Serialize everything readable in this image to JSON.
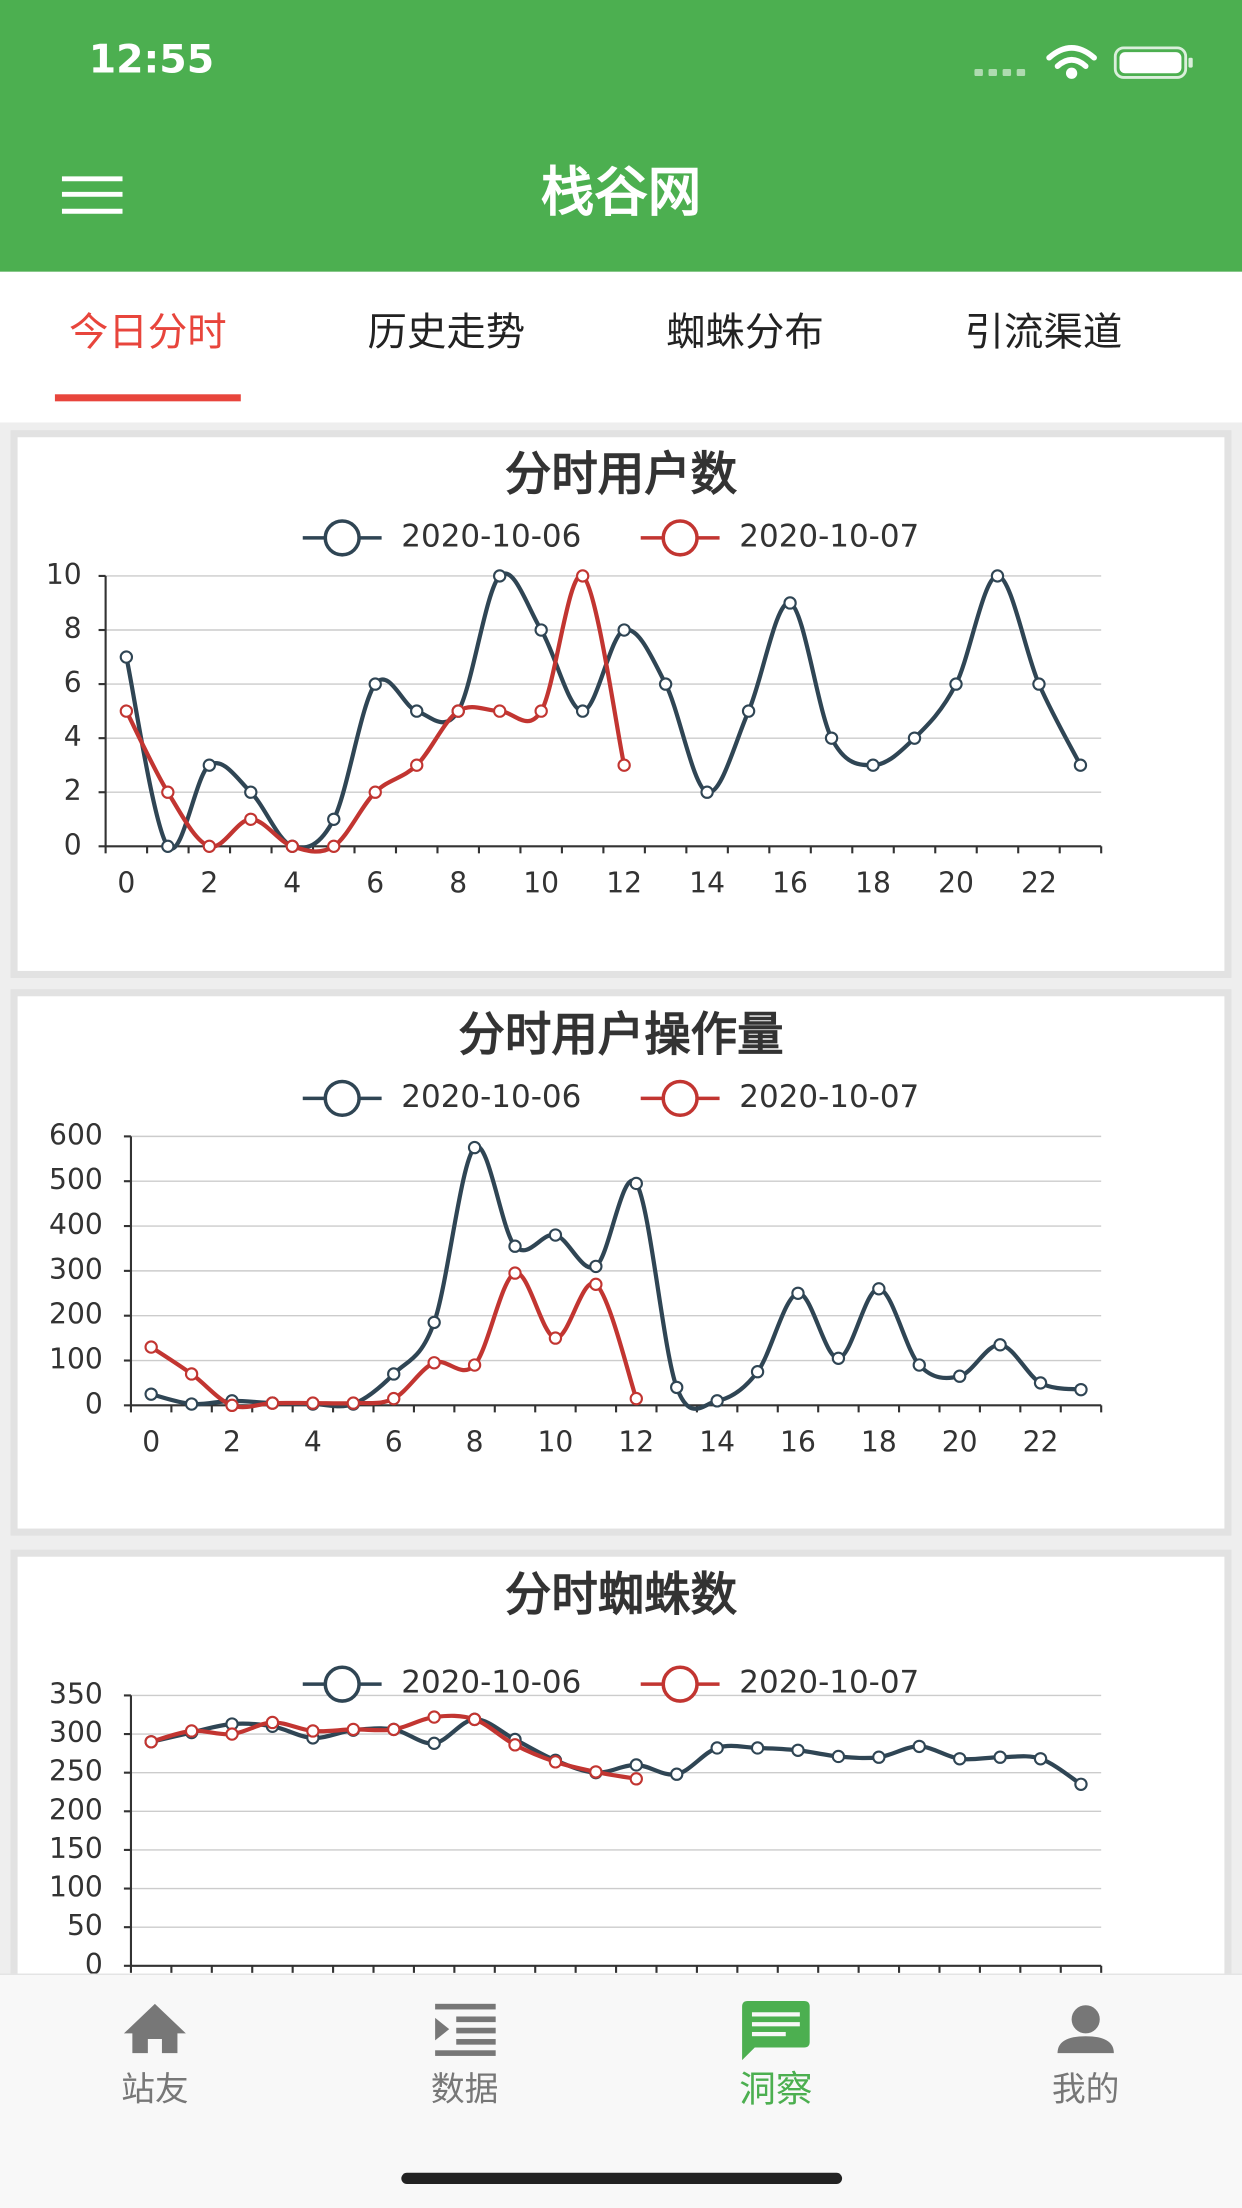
{
  "status_bar": {
    "time": "12:55"
  },
  "header": {
    "title": "栈谷网"
  },
  "tabs": [
    "今日分时",
    "历史走势",
    "蜘蛛分布",
    "引流渠道"
  ],
  "active_tab": 0,
  "chart_data": [
    {
      "type": "line",
      "title": "分时用户数",
      "categories": [
        "0",
        null,
        "2",
        null,
        "4",
        null,
        "6",
        null,
        "8",
        null,
        "10",
        null,
        "12",
        null,
        "14",
        null,
        "16",
        null,
        "18",
        null,
        "20",
        null,
        "22",
        null
      ],
      "series": [
        {
          "name": "2020-10-06",
          "color": "#2f4554",
          "values": [
            7,
            0,
            3,
            2,
            0,
            1,
            6,
            5,
            5,
            10,
            8,
            5,
            8,
            6,
            2,
            5,
            9,
            4,
            3,
            4,
            6,
            10,
            6,
            3
          ]
        },
        {
          "name": "2020-10-07",
          "color": "#c23531",
          "values": [
            5,
            2,
            0,
            1,
            0,
            0,
            2,
            3,
            5,
            5,
            5,
            10,
            3,
            null,
            null,
            null,
            null,
            null,
            null,
            null,
            null,
            null,
            null,
            null
          ]
        }
      ],
      "ylim": [
        0,
        10
      ],
      "yticks": [
        0,
        2,
        4,
        6,
        8,
        10
      ],
      "grid": true,
      "legend": "top",
      "smooth": true
    },
    {
      "type": "line",
      "title": "分时用户操作量",
      "categories": [
        "0",
        null,
        "2",
        null,
        "4",
        null,
        "6",
        null,
        "8",
        null,
        "10",
        null,
        "12",
        null,
        "14",
        null,
        "16",
        null,
        "18",
        null,
        "20",
        null,
        "22",
        null
      ],
      "series": [
        {
          "name": "2020-10-06",
          "color": "#2f4554",
          "values": [
            25,
            3,
            10,
            5,
            3,
            3,
            70,
            185,
            575,
            355,
            380,
            310,
            495,
            40,
            10,
            75,
            250,
            105,
            260,
            90,
            65,
            135,
            50,
            35
          ]
        },
        {
          "name": "2020-10-07",
          "color": "#c23531",
          "values": [
            130,
            70,
            0,
            5,
            5,
            5,
            15,
            95,
            90,
            295,
            150,
            270,
            15,
            null,
            null,
            null,
            null,
            null,
            null,
            null,
            null,
            null,
            null,
            null
          ]
        }
      ],
      "ylim": [
        0,
        600
      ],
      "yticks": [
        0,
        100,
        200,
        300,
        400,
        500,
        600
      ],
      "grid": true,
      "legend": "top",
      "smooth": true
    },
    {
      "type": "line",
      "title": "分时蜘蛛数",
      "series": [
        {
          "name": "2020-10-06",
          "color": "#2f4554",
          "values": [
            290,
            302,
            313,
            310,
            295,
            305,
            306,
            288,
            319,
            293,
            266,
            250,
            260,
            248,
            282,
            282,
            279,
            271,
            270,
            284,
            268,
            270,
            268,
            235
          ]
        },
        {
          "name": "2020-10-07",
          "color": "#c23531",
          "values": [
            290,
            304,
            300,
            315,
            304,
            306,
            306,
            322,
            319,
            286,
            264,
            251,
            242,
            null,
            null,
            null,
            null,
            null,
            null,
            null,
            null,
            null,
            null,
            null
          ]
        }
      ],
      "ylim": [
        0,
        350
      ],
      "yticks": [
        0,
        50,
        100,
        150,
        200,
        250,
        300,
        350
      ],
      "grid": true,
      "legend": "top",
      "smooth": true
    }
  ],
  "nav": [
    "站友",
    "数据",
    "洞察",
    "我的"
  ],
  "active_nav": 2
}
